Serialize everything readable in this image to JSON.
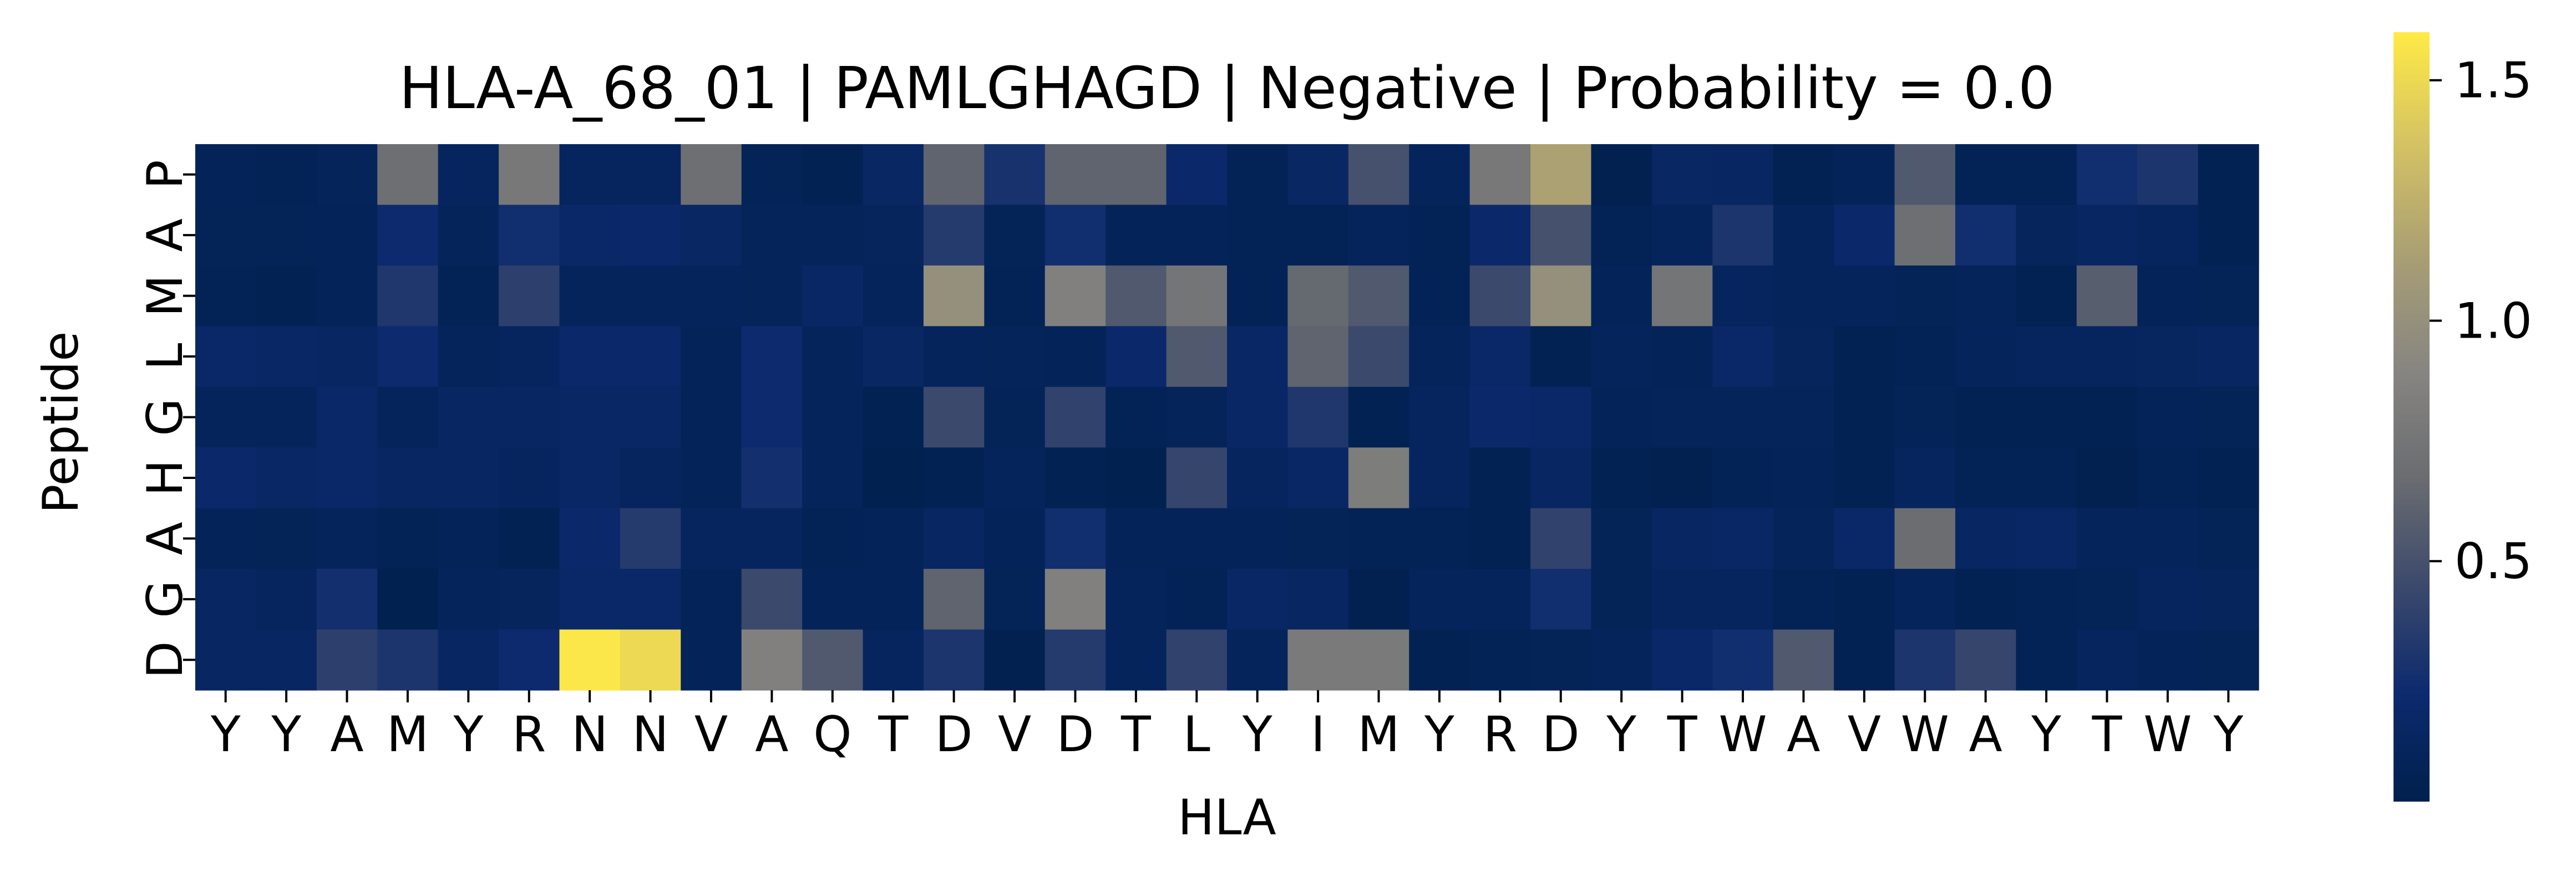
{
  "chart_data": {
    "type": "heatmap",
    "title": "HLA-A_68_01 | PAMLGHAGD | Negative | Probability = 0.0",
    "xlabel": "HLA",
    "ylabel": "Peptide",
    "x_categories": [
      "Y",
      "Y",
      "A",
      "M",
      "Y",
      "R",
      "N",
      "N",
      "V",
      "A",
      "Q",
      "T",
      "D",
      "V",
      "D",
      "T",
      "L",
      "Y",
      "I",
      "M",
      "Y",
      "R",
      "D",
      "Y",
      "T",
      "W",
      "A",
      "V",
      "W",
      "A",
      "Y",
      "T",
      "W",
      "Y"
    ],
    "y_categories": [
      "P",
      "A",
      "M",
      "L",
      "G",
      "H",
      "A",
      "G",
      "D"
    ],
    "values": [
      [
        0.08,
        0.06,
        0.09,
        0.7,
        0.12,
        0.78,
        0.12,
        0.12,
        0.7,
        0.07,
        0.05,
        0.15,
        0.62,
        0.28,
        0.62,
        0.62,
        0.2,
        0.06,
        0.15,
        0.5,
        0.1,
        0.78,
        1.15,
        0.03,
        0.15,
        0.14,
        0.04,
        0.08,
        0.55,
        0.06,
        0.06,
        0.25,
        0.3,
        0.05
      ],
      [
        0.07,
        0.07,
        0.08,
        0.22,
        0.09,
        0.25,
        0.18,
        0.2,
        0.15,
        0.09,
        0.09,
        0.11,
        0.35,
        0.07,
        0.25,
        0.08,
        0.08,
        0.06,
        0.06,
        0.1,
        0.06,
        0.2,
        0.5,
        0.06,
        0.1,
        0.3,
        0.1,
        0.2,
        0.7,
        0.25,
        0.11,
        0.14,
        0.12,
        0.05
      ],
      [
        0.06,
        0.05,
        0.08,
        0.32,
        0.06,
        0.38,
        0.1,
        0.1,
        0.1,
        0.09,
        0.16,
        0.1,
        1.0,
        0.06,
        0.85,
        0.55,
        0.75,
        0.06,
        0.65,
        0.55,
        0.06,
        0.45,
        1.0,
        0.08,
        0.75,
        0.12,
        0.1,
        0.1,
        0.07,
        0.09,
        0.05,
        0.58,
        0.08,
        0.07
      ],
      [
        0.18,
        0.16,
        0.14,
        0.22,
        0.1,
        0.12,
        0.2,
        0.2,
        0.08,
        0.22,
        0.1,
        0.15,
        0.1,
        0.09,
        0.08,
        0.2,
        0.55,
        0.16,
        0.62,
        0.45,
        0.1,
        0.18,
        0.05,
        0.1,
        0.08,
        0.18,
        0.11,
        0.05,
        0.06,
        0.1,
        0.12,
        0.12,
        0.13,
        0.14
      ],
      [
        0.1,
        0.1,
        0.18,
        0.1,
        0.14,
        0.14,
        0.16,
        0.16,
        0.08,
        0.22,
        0.1,
        0.05,
        0.45,
        0.07,
        0.4,
        0.06,
        0.09,
        0.16,
        0.32,
        0.04,
        0.12,
        0.2,
        0.18,
        0.08,
        0.09,
        0.09,
        0.09,
        0.05,
        0.07,
        0.05,
        0.05,
        0.05,
        0.08,
        0.07
      ],
      [
        0.2,
        0.16,
        0.18,
        0.14,
        0.14,
        0.12,
        0.16,
        0.12,
        0.08,
        0.26,
        0.1,
        0.02,
        0.05,
        0.1,
        0.05,
        0.02,
        0.42,
        0.12,
        0.16,
        0.82,
        0.12,
        0.05,
        0.14,
        0.05,
        0.03,
        0.06,
        0.08,
        0.04,
        0.12,
        0.06,
        0.06,
        0.03,
        0.06,
        0.05
      ],
      [
        0.08,
        0.07,
        0.1,
        0.06,
        0.08,
        0.05,
        0.2,
        0.35,
        0.12,
        0.12,
        0.06,
        0.08,
        0.14,
        0.08,
        0.25,
        0.08,
        0.08,
        0.08,
        0.07,
        0.06,
        0.06,
        0.04,
        0.4,
        0.07,
        0.14,
        0.16,
        0.09,
        0.18,
        0.68,
        0.14,
        0.16,
        0.1,
        0.1,
        0.07
      ],
      [
        0.14,
        0.12,
        0.26,
        0.02,
        0.1,
        0.11,
        0.18,
        0.18,
        0.08,
        0.45,
        0.08,
        0.08,
        0.62,
        0.07,
        0.85,
        0.1,
        0.06,
        0.16,
        0.14,
        0.03,
        0.1,
        0.1,
        0.25,
        0.07,
        0.12,
        0.12,
        0.06,
        0.05,
        0.1,
        0.05,
        0.06,
        0.07,
        0.12,
        0.11
      ],
      [
        0.14,
        0.14,
        0.38,
        0.3,
        0.14,
        0.22,
        1.58,
        1.5,
        0.08,
        0.85,
        0.55,
        0.12,
        0.3,
        0.03,
        0.35,
        0.1,
        0.4,
        0.1,
        0.8,
        0.8,
        0.05,
        0.06,
        0.07,
        0.1,
        0.18,
        0.25,
        0.55,
        0.05,
        0.3,
        0.42,
        0.06,
        0.12,
        0.08,
        0.07
      ]
    ],
    "vmin": 0.0,
    "vmax": 1.6,
    "colormap": "cividis",
    "colorbar_ticks": [
      "0.5",
      "1.0",
      "1.5"
    ],
    "colorbar_tick_values": [
      0.5,
      1.0,
      1.5
    ],
    "grid": false,
    "legend": "colorbar-right"
  }
}
